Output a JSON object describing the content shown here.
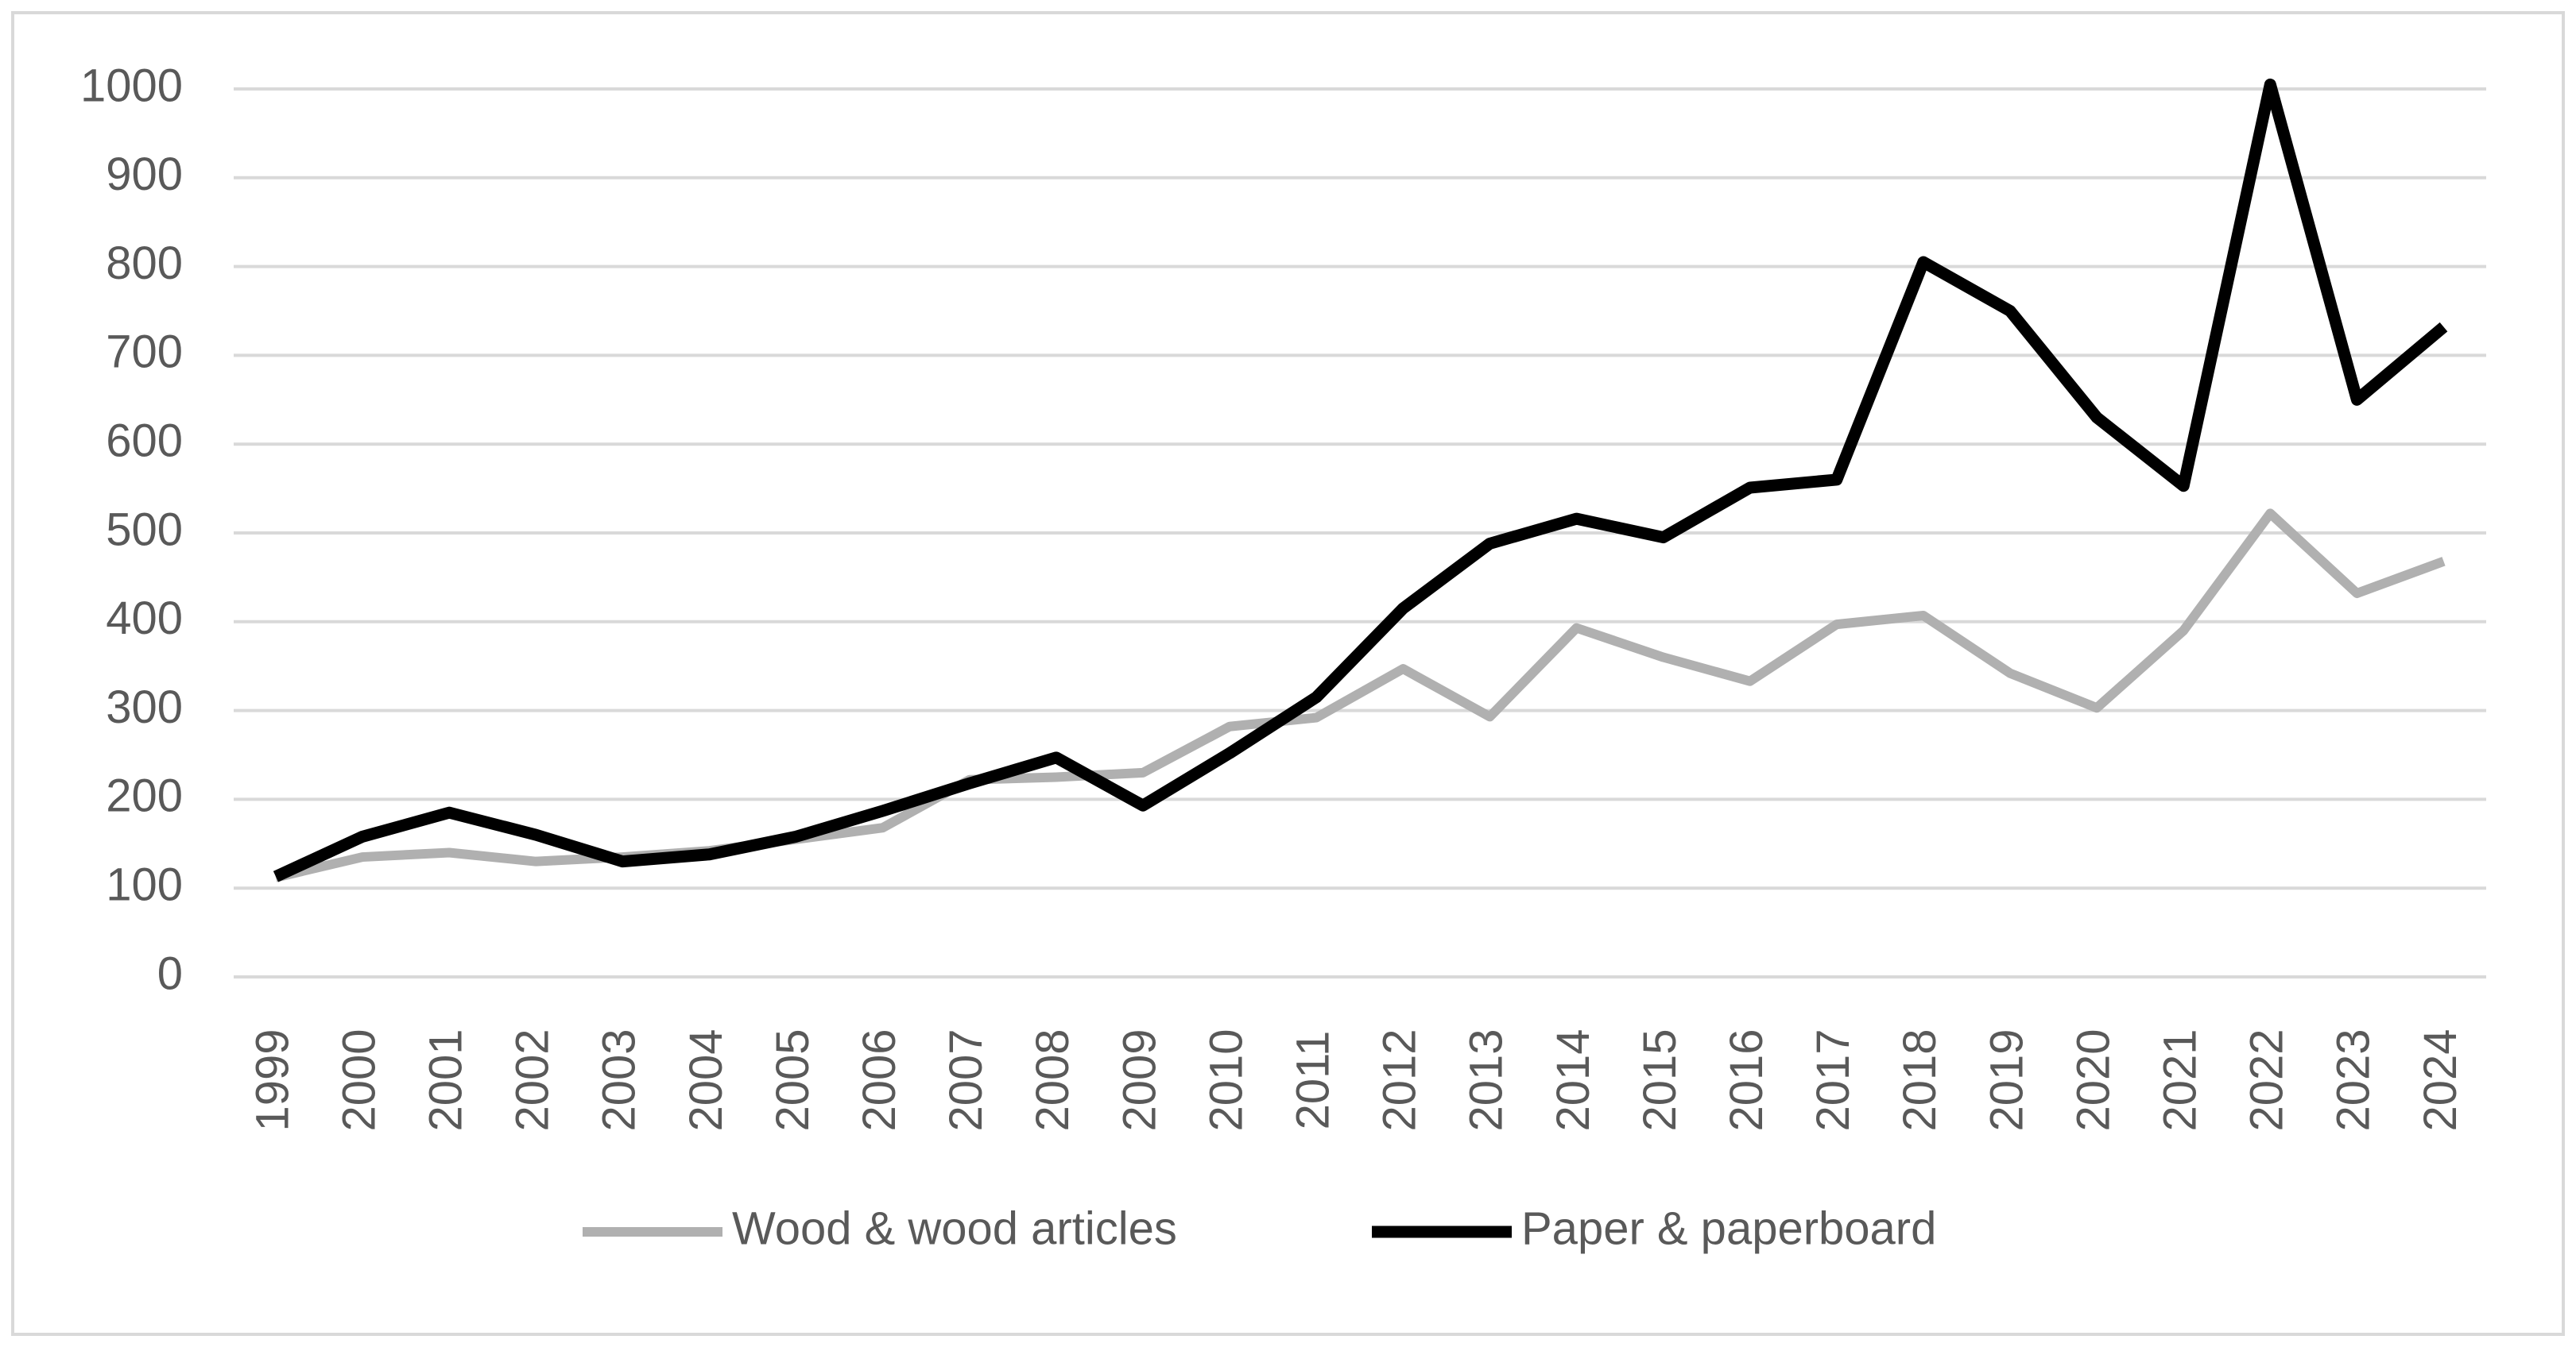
{
  "chart_data": {
    "type": "line",
    "categories": [
      "1999",
      "2000",
      "2001",
      "2002",
      "2003",
      "2004",
      "2005",
      "2006",
      "2007",
      "2008",
      "2009",
      "2010",
      "2011",
      "2012",
      "2013",
      "2014",
      "2015",
      "2016",
      "2017",
      "2018",
      "2019",
      "2020",
      "2021",
      "2022",
      "2023",
      "2024"
    ],
    "series": [
      {
        "name": "Wood & wood articles",
        "color": "#b0b0b0",
        "values": [
          112,
          135,
          140,
          130,
          135,
          142,
          155,
          168,
          222,
          225,
          230,
          282,
          292,
          347,
          293,
          393,
          360,
          333,
          397,
          407,
          342,
          303,
          390,
          522,
          432,
          468
        ]
      },
      {
        "name": "Paper & paperboard",
        "color": "#000000",
        "values": [
          113,
          158,
          185,
          160,
          130,
          138,
          158,
          187,
          218,
          247,
          193,
          252,
          315,
          415,
          488,
          516,
          495,
          551,
          560,
          805,
          750,
          630,
          553,
          1005,
          650,
          732
        ]
      }
    ],
    "ylim": [
      0,
      1000
    ],
    "yticks": [
      0,
      100,
      200,
      300,
      400,
      500,
      600,
      700,
      800,
      900,
      1000
    ],
    "grid": true,
    "legend": "bottom"
  }
}
